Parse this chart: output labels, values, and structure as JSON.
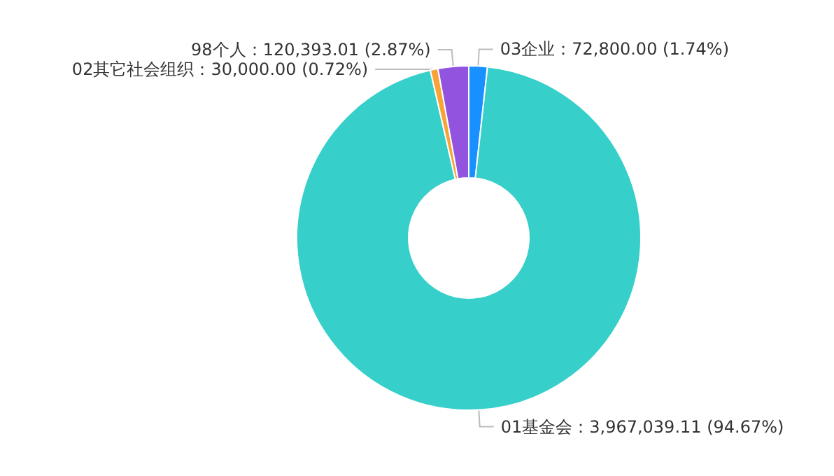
{
  "chart_data": {
    "type": "donut",
    "categories": [
      "03企业",
      "01基金会",
      "02其它社会组织",
      "98个人"
    ],
    "values": [
      72800.0,
      3967039.11,
      30000.0,
      120393.01
    ],
    "colors": [
      "#1890ff",
      "#36cfc9",
      "#f7a335",
      "#9254de"
    ],
    "value_labels": [
      "72,800.00 (1.74%)",
      "3,967,039.11 (94.67%)",
      "30,000.00 (0.72%)",
      "120,393.01 (2.87%)"
    ],
    "legend": false
  }
}
